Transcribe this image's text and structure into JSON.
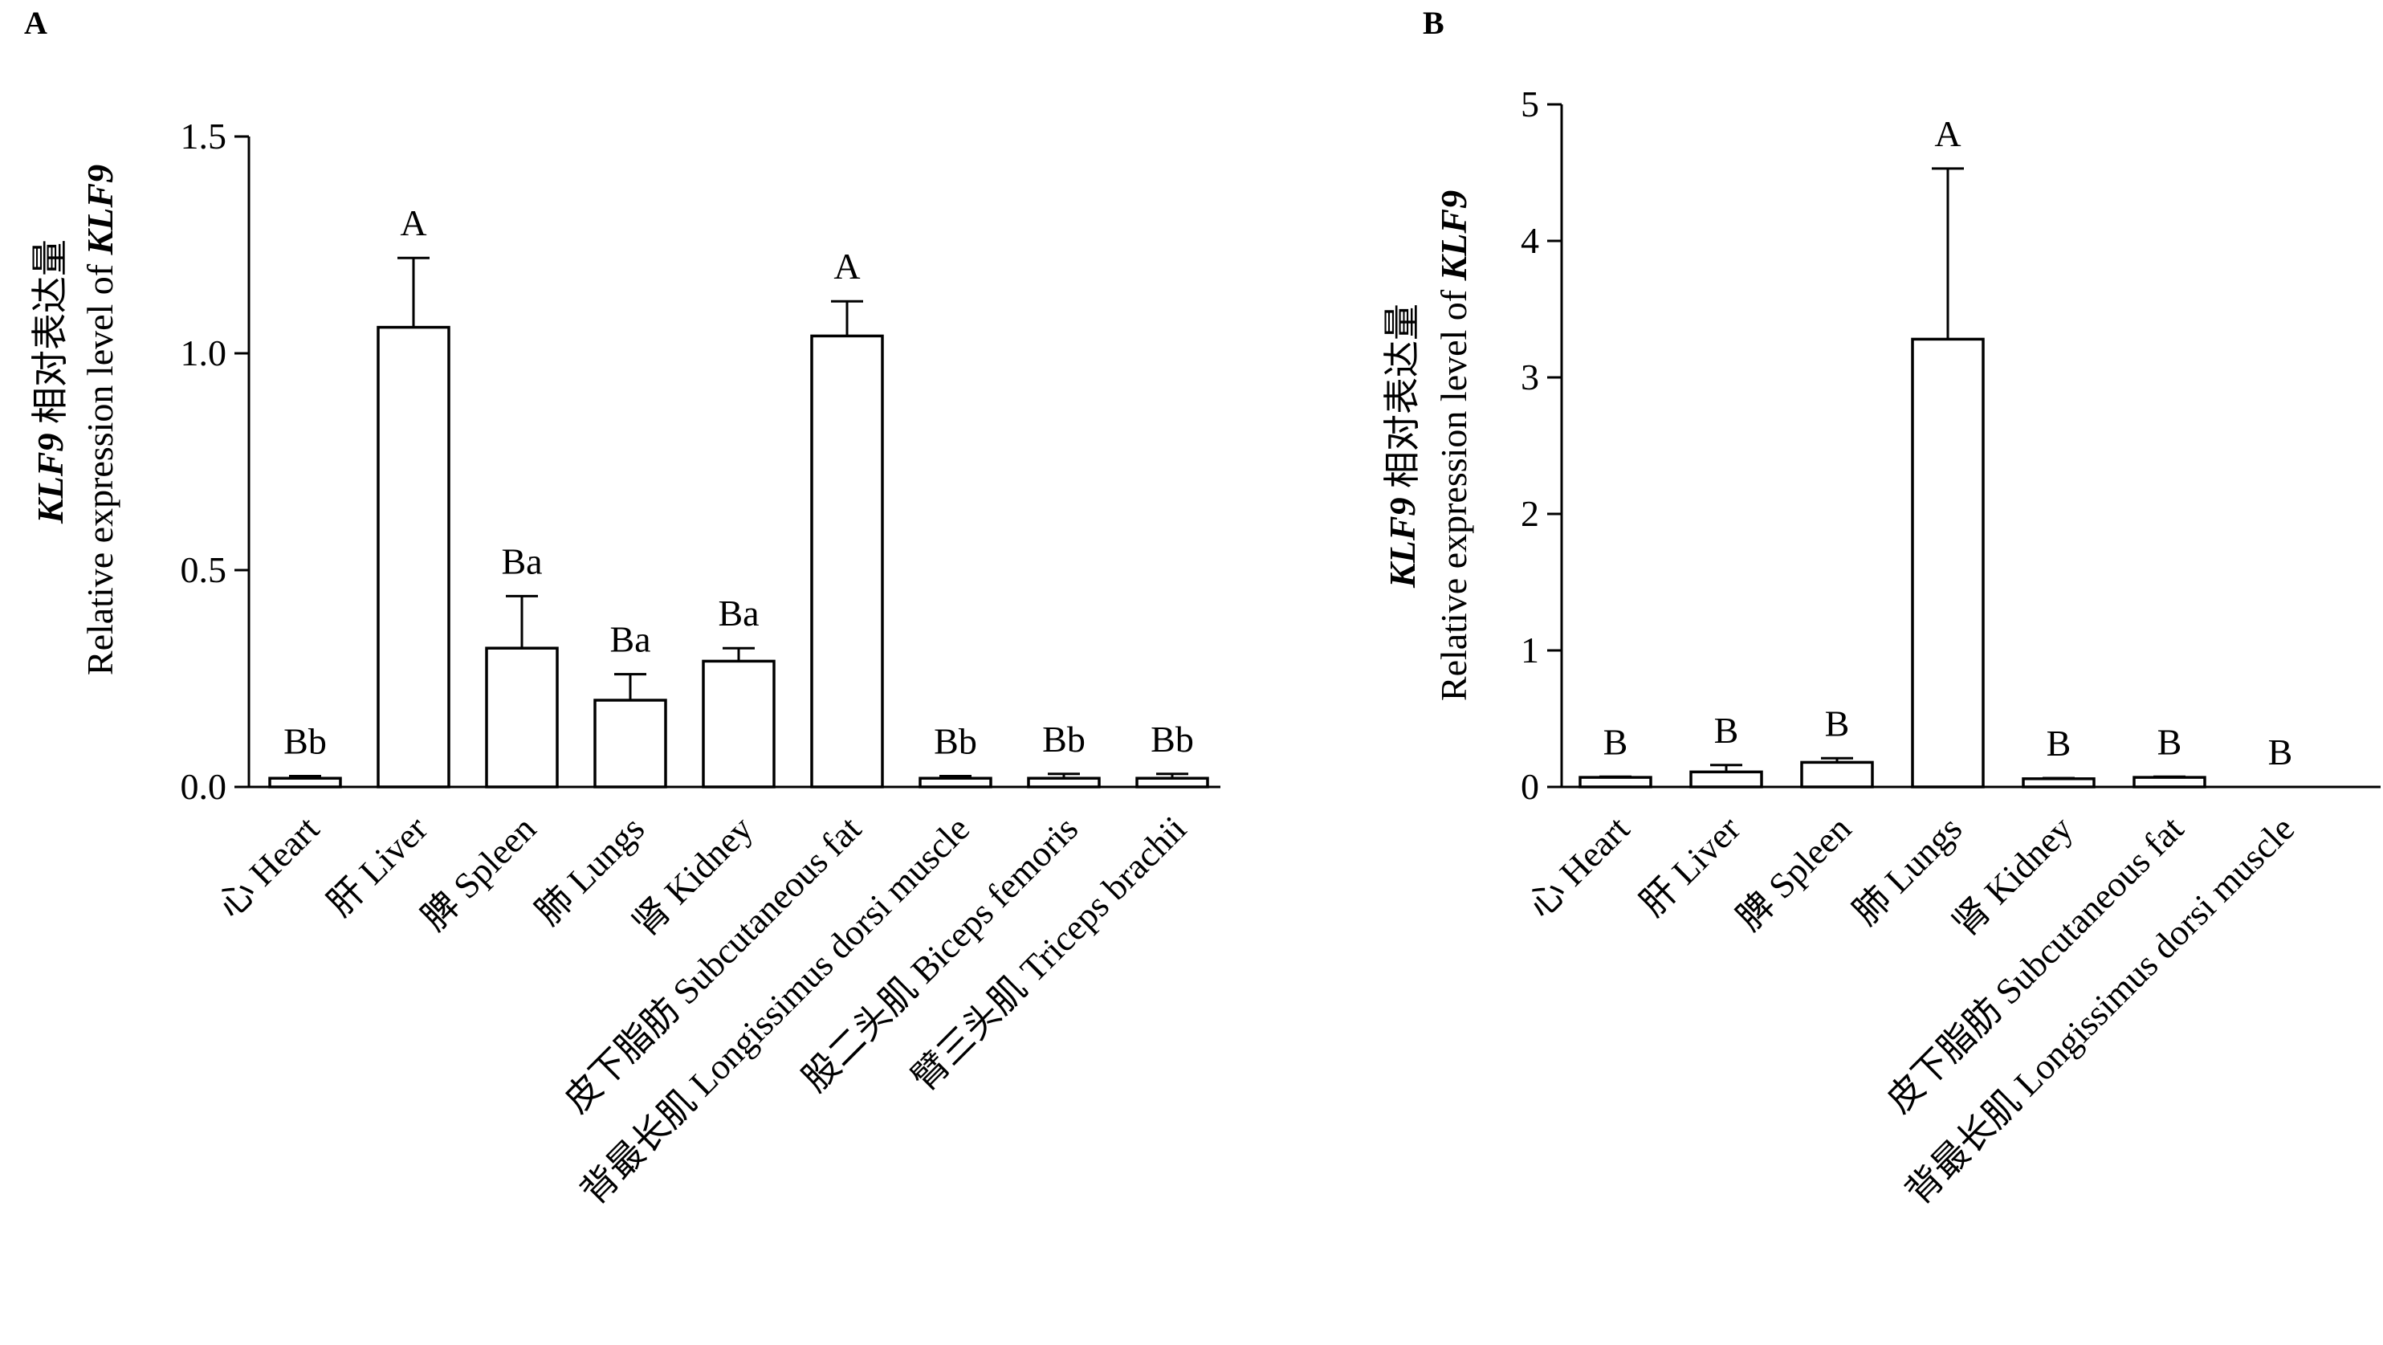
{
  "chart_data": [
    {
      "panel": "A",
      "type": "bar",
      "ylabel_line1_gene": "KLF9",
      "ylabel_line1_text": " 相对表达量",
      "ylabel_line2_text": "Relative expression level of ",
      "ylabel_line2_gene": "KLF9",
      "ylim": [
        0,
        1.5
      ],
      "yticks": [
        "0.0",
        "0.5",
        "1.0",
        "1.5"
      ],
      "categories": [
        "心 Heart",
        "肝 Liver",
        "脾 Spleen",
        "肺 Lungs",
        "肾 Kidney",
        "皮下脂肪 Subcutaneous fat",
        "背最长肌 Longissimus dorsi muscle",
        "股二头肌 Biceps femoris",
        "臂三头肌 Triceps brachii"
      ],
      "values": [
        0.02,
        1.06,
        0.32,
        0.2,
        0.29,
        1.04,
        0.02,
        0.02,
        0.02
      ],
      "errors": [
        0.005,
        0.16,
        0.12,
        0.06,
        0.03,
        0.08,
        0.005,
        0.01,
        0.01
      ],
      "labels": [
        "Bb",
        "A",
        "Ba",
        "Ba",
        "Ba",
        "A",
        "Bb",
        "Bb",
        "Bb"
      ]
    },
    {
      "panel": "B",
      "type": "bar",
      "ylabel_line1_gene": "KLF9",
      "ylabel_line1_text": " 相对表达量",
      "ylabel_line2_text": "Relative expression level of ",
      "ylabel_line2_gene": "KLF9",
      "ylim": [
        0,
        5
      ],
      "yticks": [
        "0",
        "1",
        "2",
        "3",
        "4",
        "5"
      ],
      "categories": [
        "心 Heart",
        "肝 Liver",
        "脾 Spleen",
        "肺 Lungs",
        "肾 Kidney",
        "皮下脂肪 Subcutaneous fat",
        "背最长肌 Longissimus dorsi muscle"
      ],
      "values": [
        0.07,
        0.11,
        0.18,
        3.28,
        0.06,
        0.07,
        0.0
      ],
      "errors": [
        0.005,
        0.05,
        0.03,
        1.25,
        0.005,
        0.005,
        0
      ],
      "labels": [
        "B",
        "B",
        "B",
        "A",
        "B",
        "B",
        "B"
      ]
    }
  ]
}
